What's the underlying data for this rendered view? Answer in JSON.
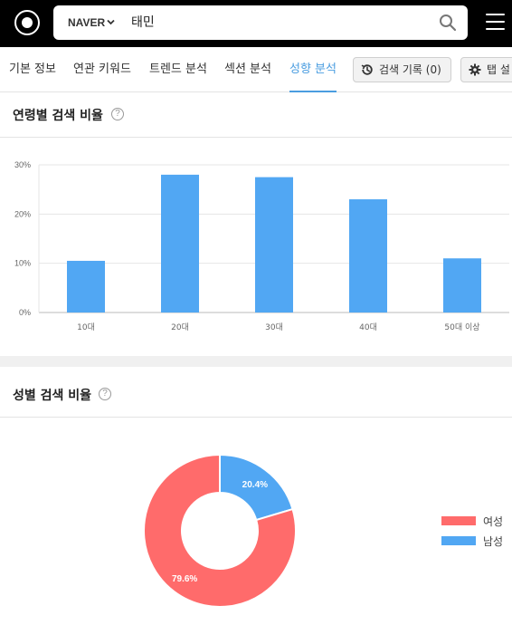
{
  "header": {
    "engine_label": "NAVER",
    "query": "태민",
    "icons": {
      "logo": "logo-icon",
      "engine": "chevron-down-icon",
      "search": "search-icon",
      "menu": "hamburger-menu-icon"
    }
  },
  "tabs": [
    {
      "label": "기본 정보",
      "active": false
    },
    {
      "label": "연관 키워드",
      "active": false
    },
    {
      "label": "트렌드 분석",
      "active": false
    },
    {
      "label": "섹션 분석",
      "active": false
    },
    {
      "label": "성향 분석",
      "active": true
    }
  ],
  "history_button": {
    "label": "검색 기록 (0)",
    "icon": "history-icon"
  },
  "settings_button": {
    "label": "탭 설",
    "icon": "gear-icon"
  },
  "age_section": {
    "title": "연령별 검색 비율",
    "help": "?"
  },
  "gender_section": {
    "title": "성별 검색 비율",
    "help": "?"
  },
  "colors": {
    "accent": "#4a9de0",
    "bar": "#51a7f3",
    "female": "#ff6b6b",
    "male": "#51a7f3"
  },
  "chart_data": [
    {
      "type": "bar",
      "categories": [
        "10대",
        "20대",
        "30대",
        "40대",
        "50대 이상"
      ],
      "values": [
        10.5,
        28,
        27.5,
        23,
        11
      ],
      "ylim": [
        0,
        30
      ],
      "yticks": [
        "0%",
        "10%",
        "20%",
        "30%"
      ],
      "grid": true
    },
    {
      "type": "pie",
      "donut": true,
      "categories": [
        "여성",
        "남성"
      ],
      "values": [
        79.6,
        20.4
      ],
      "labels": [
        "79.6%",
        "20.4%"
      ],
      "legend": "right"
    }
  ]
}
